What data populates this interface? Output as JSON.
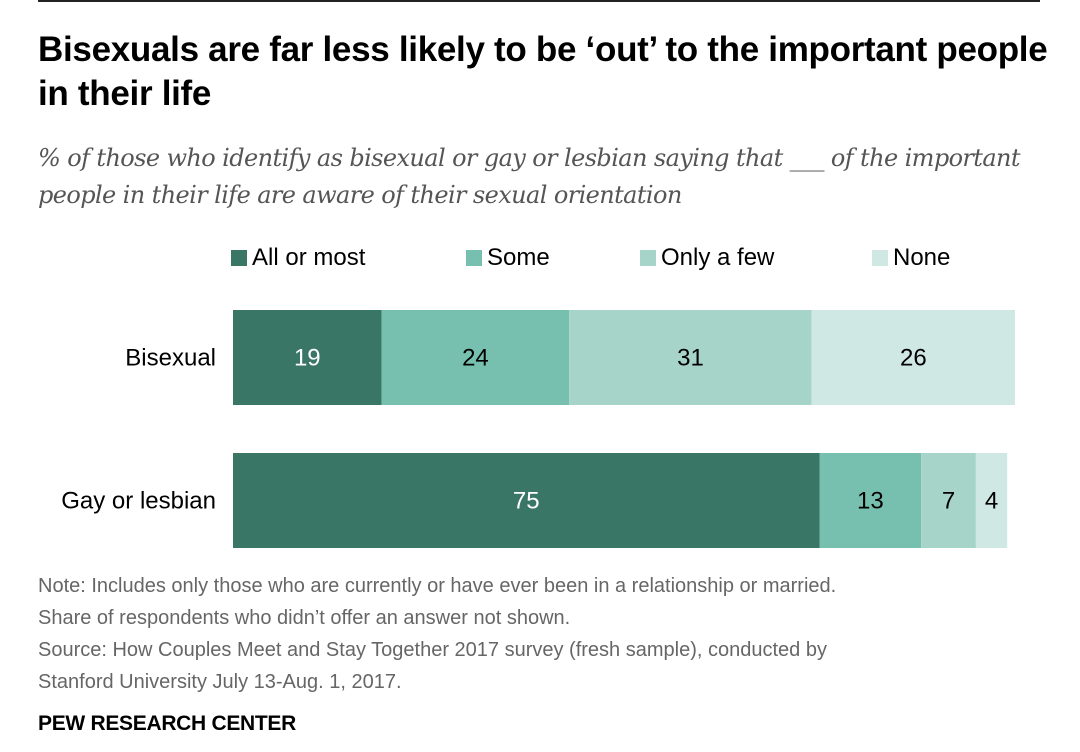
{
  "chart_data": {
    "type": "bar",
    "orientation": "horizontal",
    "stacked": true,
    "title": "Bisexuals are far less likely to be ‘out’ to the important people in their life",
    "subtitle": "% of those who identify as bisexual or gay or lesbian saying that ___ of the important people in their life are aware of their sexual orientation",
    "categories": [
      "Bisexual",
      "Gay or lesbian"
    ],
    "series": [
      {
        "name": "All or most",
        "color": "#3a7665",
        "label_color": "#ffffff",
        "values": [
          19,
          75
        ]
      },
      {
        "name": "Some",
        "color": "#77c0af",
        "label_color": "#000000",
        "values": [
          24,
          13
        ]
      },
      {
        "name": "Only a few",
        "color": "#a6d4c9",
        "label_color": "#000000",
        "values": [
          31,
          7
        ]
      },
      {
        "name": "None",
        "color": "#d0e8e3",
        "label_color": "#000000",
        "values": [
          26,
          4
        ]
      }
    ],
    "xlabel": "",
    "ylabel": "",
    "xlim": [
      0,
      100
    ],
    "grid": false,
    "legend_position": "top",
    "data_labels": true
  },
  "notes": {
    "note_line1": "Note: Includes only those who are currently or have ever been in a relationship or married.",
    "note_line2": "Share of respondents who didn’t offer an answer not shown.",
    "source_line1": "Source: How Couples Meet and Stay Together 2017 survey (fresh sample), conducted by",
    "source_line2": "Stanford University July 13-Aug. 1, 2017."
  },
  "brand": "PEW RESEARCH CENTER"
}
